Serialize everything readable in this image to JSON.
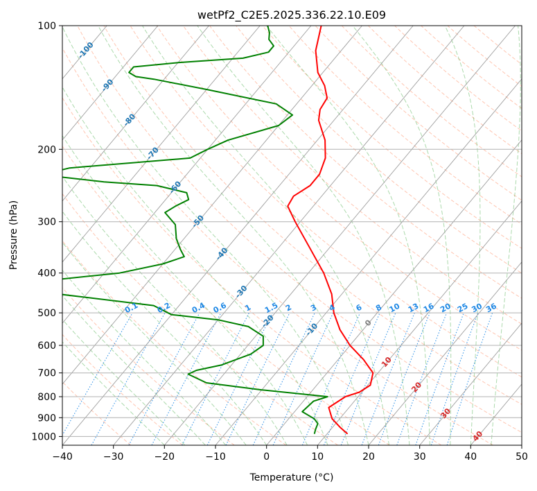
{
  "chart_data": {
    "type": "line",
    "title": "wetPf2_C2E5.2025.336.22.10.E09",
    "xlabel": "Temperature (°C)",
    "ylabel": "Pressure (hPa)",
    "xlim": [
      -40,
      50
    ],
    "ylim": [
      1050,
      100
    ],
    "y_scale": "log",
    "x_ticks": [
      "−40",
      "−30",
      "−20",
      "−10",
      "0",
      "10",
      "20",
      "30",
      "40",
      "50"
    ],
    "y_ticks": [
      "100",
      "200",
      "300",
      "400",
      "500",
      "600",
      "700",
      "800",
      "900",
      "1000"
    ],
    "grid": true,
    "isotherm_labels": [
      "-100",
      "-90",
      "-80",
      "-70",
      "-60",
      "-50",
      "-40",
      "-30",
      "-20",
      "-10",
      "0",
      "10",
      "20",
      "30",
      "40"
    ],
    "mixing_ratio_labels": [
      "0.1",
      "0.2",
      "0.4",
      "0.6",
      "1",
      "1.5",
      "2",
      "3",
      "4",
      "6",
      "8",
      "10",
      "13",
      "16",
      "20",
      "25",
      "30",
      "36"
    ],
    "colors": {
      "temperature": "#ff0000",
      "dewpoint": "#008000",
      "isotherm_label_cold": "#1f77b4",
      "isotherm_label_warm": "#d62728",
      "isotherm_label_zero": "#808080",
      "mixing_ratio": "#1e88e5",
      "dry_adiabat": "#ff7f50",
      "moist_adiabat": "#2ca02c"
    },
    "series": [
      {
        "points": [
          {
            "p": 985,
            "t": 14
          },
          {
            "p": 950,
            "t": 11.5
          },
          {
            "p": 905,
            "t": 8.5
          },
          {
            "p": 850,
            "t": 6
          },
          {
            "p": 800,
            "t": 7.5
          },
          {
            "p": 780,
            "t": 9.5
          },
          {
            "p": 750,
            "t": 10.5
          },
          {
            "p": 700,
            "t": 9
          },
          {
            "p": 650,
            "t": 5
          },
          {
            "p": 600,
            "t": 0
          },
          {
            "p": 550,
            "t": -4.5
          },
          {
            "p": 500,
            "t": -8.5
          },
          {
            "p": 450,
            "t": -12
          },
          {
            "p": 400,
            "t": -17
          },
          {
            "p": 350,
            "t": -23.5
          },
          {
            "p": 300,
            "t": -31
          },
          {
            "p": 275,
            "t": -35
          },
          {
            "p": 260,
            "t": -35.5
          },
          {
            "p": 245,
            "t": -34
          },
          {
            "p": 230,
            "t": -34
          },
          {
            "p": 210,
            "t": -35.5
          },
          {
            "p": 190,
            "t": -38.5
          },
          {
            "p": 170,
            "t": -43
          },
          {
            "p": 160,
            "t": -44.5
          },
          {
            "p": 150,
            "t": -45
          },
          {
            "p": 140,
            "t": -47.5
          },
          {
            "p": 130,
            "t": -51
          },
          {
            "p": 115,
            "t": -55
          },
          {
            "p": 100,
            "t": -58
          }
        ]
      },
      {
        "points": [
          {
            "p": 985,
            "t": 7.5
          },
          {
            "p": 960,
            "t": 7
          },
          {
            "p": 930,
            "t": 6.5
          },
          {
            "p": 905,
            "t": 5
          },
          {
            "p": 870,
            "t": 1.5
          },
          {
            "p": 820,
            "t": 2
          },
          {
            "p": 800,
            "t": 4
          },
          {
            "p": 770,
            "t": -10
          },
          {
            "p": 740,
            "t": -22
          },
          {
            "p": 705,
            "t": -27
          },
          {
            "p": 690,
            "t": -26
          },
          {
            "p": 670,
            "t": -22
          },
          {
            "p": 630,
            "t": -18
          },
          {
            "p": 600,
            "t": -17
          },
          {
            "p": 570,
            "t": -18.5
          },
          {
            "p": 540,
            "t": -23
          },
          {
            "p": 520,
            "t": -30
          },
          {
            "p": 505,
            "t": -40
          },
          {
            "p": 480,
            "t": -45
          },
          {
            "p": 430,
            "t": -80
          },
          {
            "p": 420,
            "t": -72
          },
          {
            "p": 400,
            "t": -57
          },
          {
            "p": 380,
            "t": -50
          },
          {
            "p": 365,
            "t": -47
          },
          {
            "p": 350,
            "t": -49
          },
          {
            "p": 330,
            "t": -51.5
          },
          {
            "p": 305,
            "t": -54
          },
          {
            "p": 285,
            "t": -58
          },
          {
            "p": 275,
            "t": -57
          },
          {
            "p": 265,
            "t": -55.5
          },
          {
            "p": 255,
            "t": -57
          },
          {
            "p": 245,
            "t": -64
          },
          {
            "p": 240,
            "t": -75
          },
          {
            "p": 233,
            "t": -85
          },
          {
            "p": 228,
            "t": -87
          },
          {
            "p": 222,
            "t": -84
          },
          {
            "p": 210,
            "t": -62
          },
          {
            "p": 200,
            "t": -60
          },
          {
            "p": 190,
            "t": -57.5
          },
          {
            "p": 175,
            "t": -50
          },
          {
            "p": 165,
            "t": -49
          },
          {
            "p": 155,
            "t": -54
          },
          {
            "p": 143,
            "t": -70
          },
          {
            "p": 135,
            "t": -82
          },
          {
            "p": 133,
            "t": -86
          },
          {
            "p": 130,
            "t": -88
          },
          {
            "p": 126,
            "t": -88
          },
          {
            "p": 123,
            "t": -80
          },
          {
            "p": 120,
            "t": -68
          },
          {
            "p": 116,
            "t": -64
          },
          {
            "p": 112,
            "t": -64
          },
          {
            "p": 108,
            "t": -66
          },
          {
            "p": 104,
            "t": -67
          },
          {
            "p": 100,
            "t": -68.5
          }
        ]
      }
    ]
  }
}
